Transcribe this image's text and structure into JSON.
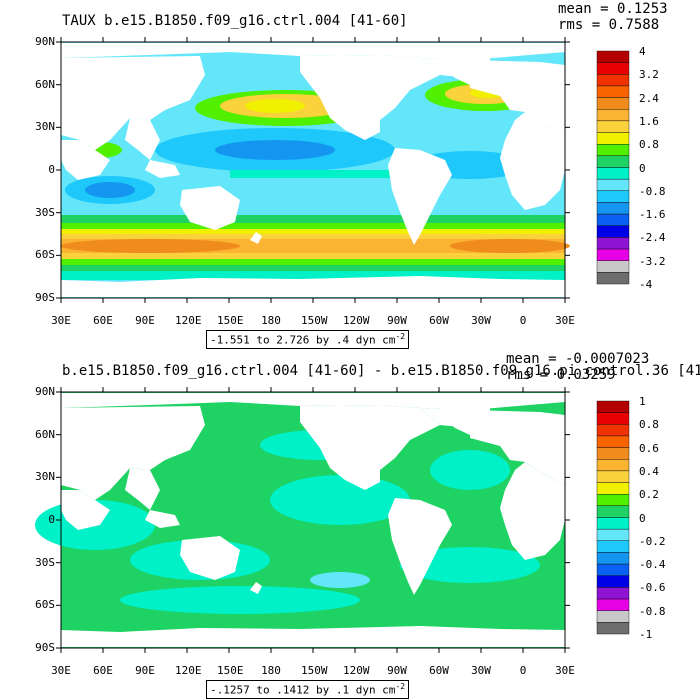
{
  "palette": [
    "#6e6e6e",
    "#c8c8c8",
    "#e600e6",
    "#8c14d2",
    "#0000e6",
    "#0a60f0",
    "#1496f0",
    "#1ec8fa",
    "#64e6fa",
    "#00f0c8",
    "#1ed264",
    "#50f000",
    "#f0f000",
    "#fad23c",
    "#fab432",
    "#f08c1e",
    "#fa6400",
    "#f03200",
    "#e60000",
    "#b40000"
  ],
  "land_color": "#ffffff",
  "panels": [
    {
      "id": "top",
      "title": "TAUX b.e15.B1850.f09_g16.ctrl.004 [41-60]",
      "mean_label": "mean = 0.1253",
      "rms_label": "rms = 0.7588",
      "range_text": "-1.551 to 2.726 by .4 dyn cm",
      "range_exponent": "-2",
      "lat_ticks": [
        "90N",
        "60N",
        "30N",
        "0",
        "30S",
        "60S",
        "90S"
      ],
      "lon_ticks": [
        "30E",
        "60E",
        "90E",
        "120E",
        "150E",
        "180",
        "150W",
        "120W",
        "90W",
        "60W",
        "30W",
        "0",
        "30E"
      ],
      "legend_labels": [
        "4",
        "3.2",
        "2.4",
        "1.6",
        "0.8",
        "0",
        "-0.8",
        "-1.6",
        "-2.4",
        "-3.2",
        "-4"
      ],
      "data_range": [
        -4,
        4
      ]
    },
    {
      "id": "bottom",
      "title": "b.e15.B1850.f09_g16.ctrl.004 [41-60] - b.e15.B1850.f09_g16.pi_control.36 [41-",
      "mean_label": "mean = -0.0007023",
      "rms_label": "rms = 0.03259",
      "range_text": "-.1257 to .1412 by .1 dyn cm",
      "range_exponent": "-2",
      "lat_ticks": [
        "90N",
        "60N",
        "30N",
        "0",
        "30S",
        "60S",
        "90S"
      ],
      "lon_ticks": [
        "30E",
        "60E",
        "90E",
        "120E",
        "150E",
        "180",
        "150W",
        "120W",
        "90W",
        "60W",
        "30W",
        "0",
        "30E"
      ],
      "legend_labels": [
        "1",
        "0.8",
        "0.6",
        "0.4",
        "0.2",
        "0",
        "-0.2",
        "-0.4",
        "-0.6",
        "-0.8",
        "-1"
      ],
      "data_range": [
        -1,
        1
      ]
    }
  ]
}
